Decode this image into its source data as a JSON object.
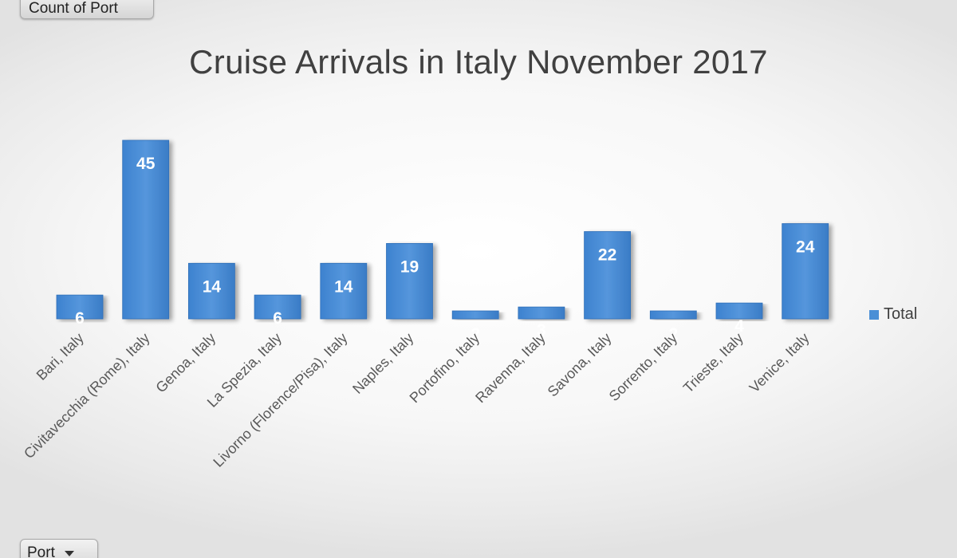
{
  "field_buttons": {
    "values_field": "Count of Port",
    "axis_field": "Port"
  },
  "legend": {
    "label": "Total"
  },
  "colors": {
    "bar": "#4a8fd6",
    "bar_dark": "#2f6fb8"
  },
  "chart_data": {
    "type": "bar",
    "title": "Cruise Arrivals in Italy November 2017",
    "categories": [
      "Bari, Italy",
      "Civitavecchia (Rome), Italy",
      "Genoa, Italy",
      "La Spezia, Italy",
      "Livorno (Florence/Pisa), Italy",
      "Naples, Italy",
      "Portofino, Italy",
      "Ravenna, Italy",
      "Savona, Italy",
      "Sorrento, Italy",
      "Trieste, Italy",
      "Venice, Italy"
    ],
    "series": [
      {
        "name": "Total",
        "values": [
          6,
          45,
          14,
          6,
          14,
          19,
          2,
          3,
          22,
          2,
          4,
          24
        ]
      }
    ],
    "ylim": [
      0,
      45
    ],
    "grid": false,
    "legend_position": "right",
    "data_labels": true
  }
}
